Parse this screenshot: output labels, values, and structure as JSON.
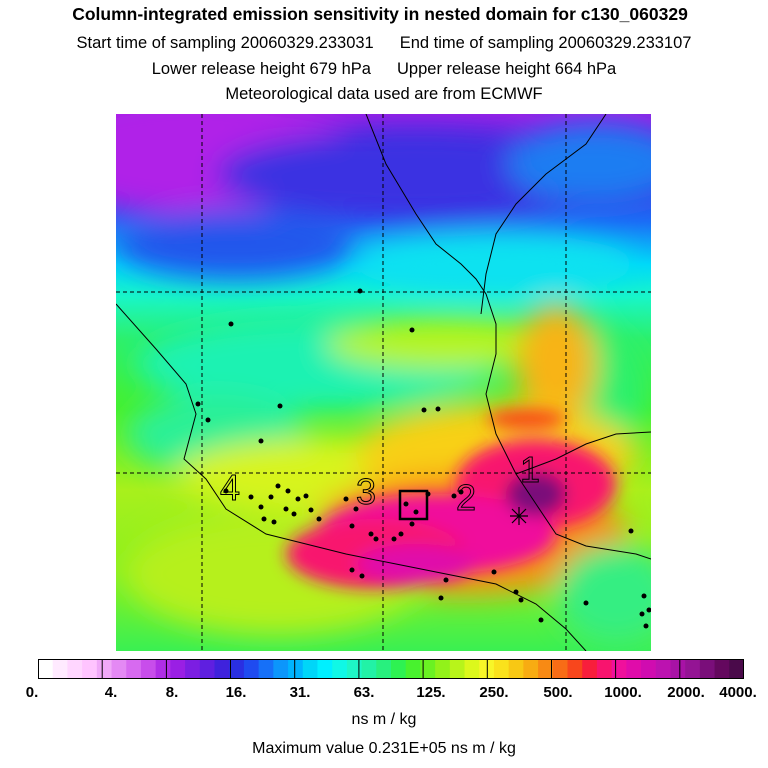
{
  "header": {
    "title": "Column-integrated emission sensitivity in nested domain for c130_060329",
    "start_label": "Start time of sampling 20060329.233031",
    "end_label": "End time of sampling 20060329.233107",
    "lower_label": "Lower release height  679 hPa",
    "upper_label": "Upper release height  664 hPa",
    "met_label": "Meteorological data used are from ECMWF"
  },
  "map": {
    "region_labels": [
      "1",
      "2",
      "3",
      "4"
    ],
    "grid": "dashed"
  },
  "colorbar": {
    "tick_labels": [
      "0.",
      "4.",
      "8.",
      "16.",
      "31.",
      "63.",
      "125.",
      "250.",
      "500.",
      "1000.",
      "2000.",
      "4000."
    ],
    "colors": [
      "#ffffff",
      "#ffeaff",
      "#ffd6ff",
      "#ffc4ff",
      "#f0a8f8",
      "#e489f4",
      "#d76af0",
      "#c84deb",
      "#b02ee6",
      "#9a1fe4",
      "#7c1ee2",
      "#5f1fe0",
      "#3f22dc",
      "#2a2fe2",
      "#1f4bf0",
      "#1670f8",
      "#0c96fb",
      "#00b4ff",
      "#00d6f8",
      "#00f0ff",
      "#10f8e6",
      "#1ef6c6",
      "#22f2a6",
      "#28f07e",
      "#2ef252",
      "#48f22e",
      "#6af222",
      "#92f21a",
      "#b8f41a",
      "#dcf81c",
      "#f8f628",
      "#fae21c",
      "#f8c814",
      "#f8ac12",
      "#f88a14",
      "#f86c16",
      "#f8461c",
      "#f81e3c",
      "#f8146e",
      "#f0109c",
      "#e00caa",
      "#d00cb0",
      "#bc12b0",
      "#a812a6",
      "#941494",
      "#7a0e7a",
      "#64085e",
      "#4a0a4a"
    ],
    "units": "ns m / kg"
  },
  "footer": {
    "max_value": "Maximum value  0.231E+05 ns m / kg"
  }
}
